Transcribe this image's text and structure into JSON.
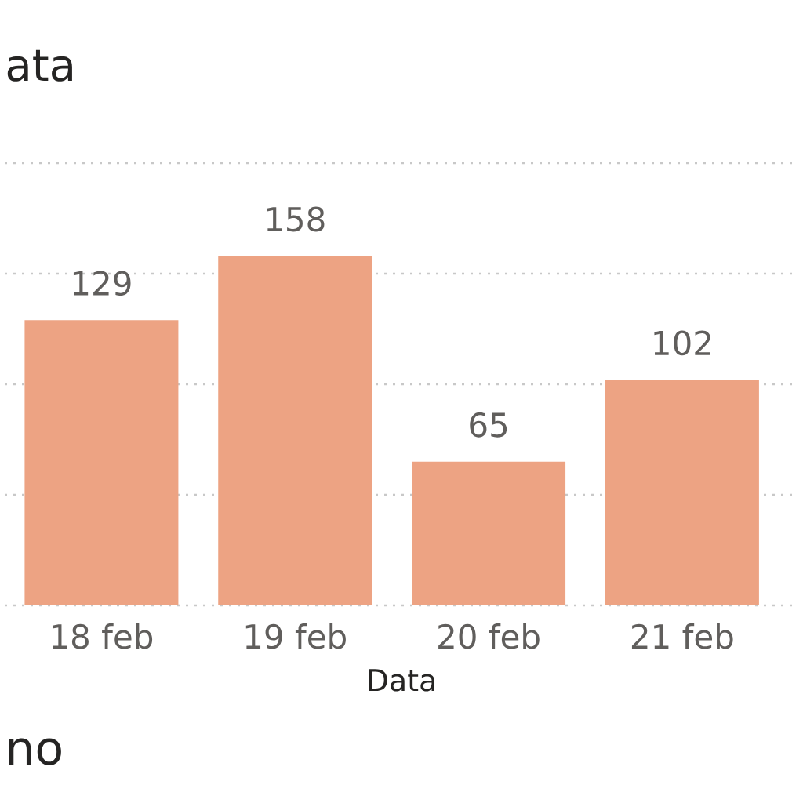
{
  "chart_data": {
    "type": "bar",
    "title": "ata",
    "xlabel": "Data",
    "categories": [
      "18 feb",
      "19 feb",
      "20 feb",
      "21 feb"
    ],
    "values": [
      129,
      158,
      65,
      102
    ],
    "color": "#eda383",
    "ylim": [
      0,
      200
    ],
    "yticks": [
      {
        "value": 0,
        "label": null
      },
      {
        "value": 50,
        "label": null
      },
      {
        "value": 100,
        "label": null
      },
      {
        "value": 150,
        "label": null
      },
      {
        "value": 200,
        "label": null
      }
    ],
    "grid": "y",
    "tick_labels": "x",
    "data_labels": true,
    "annotations": [
      "no"
    ]
  }
}
